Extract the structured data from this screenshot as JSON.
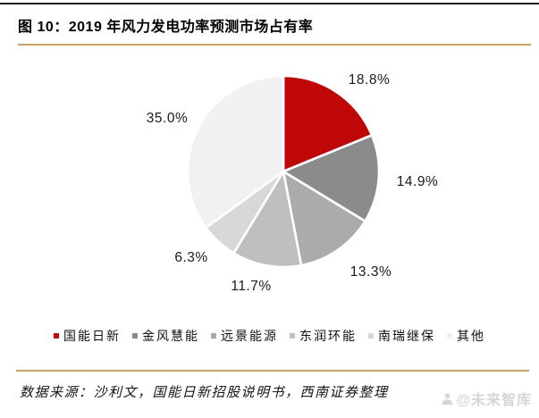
{
  "figure": {
    "title": "图 10：2019 年风力发电功率预测市场占有率",
    "source_note": "数据来源：沙利文，国能日新招股说明书，西南证券整理",
    "watermark": "@未来智库"
  },
  "colors": {
    "accent_red": "#C00708",
    "divider_gold": "#C8A464",
    "top_border": "#141414",
    "watermark_gray": "#D6D6D6",
    "label_text": "#1a1a1a"
  },
  "chart_data": {
    "type": "pie",
    "title": "2019 年风力发电功率预测市场占有率",
    "categories": [
      "国能日新",
      "金风慧能",
      "远景能源",
      "东润环能",
      "南瑞继保",
      "其他"
    ],
    "values": [
      18.8,
      14.9,
      13.3,
      11.7,
      6.3,
      35.0
    ],
    "labels": [
      "18.8%",
      "14.9%",
      "13.3%",
      "11.7%",
      "6.3%",
      "35.0%"
    ],
    "colors": [
      "#C00708",
      "#8B8B8B",
      "#ABABAB",
      "#BFBFBF",
      "#D8D8D8",
      "#F1F1F1"
    ],
    "start_angle_deg": 0,
    "direction": "clockwise",
    "slice_border_color": "#FFFFFF",
    "legend_position": "bottom",
    "data_labels": "outside"
  }
}
